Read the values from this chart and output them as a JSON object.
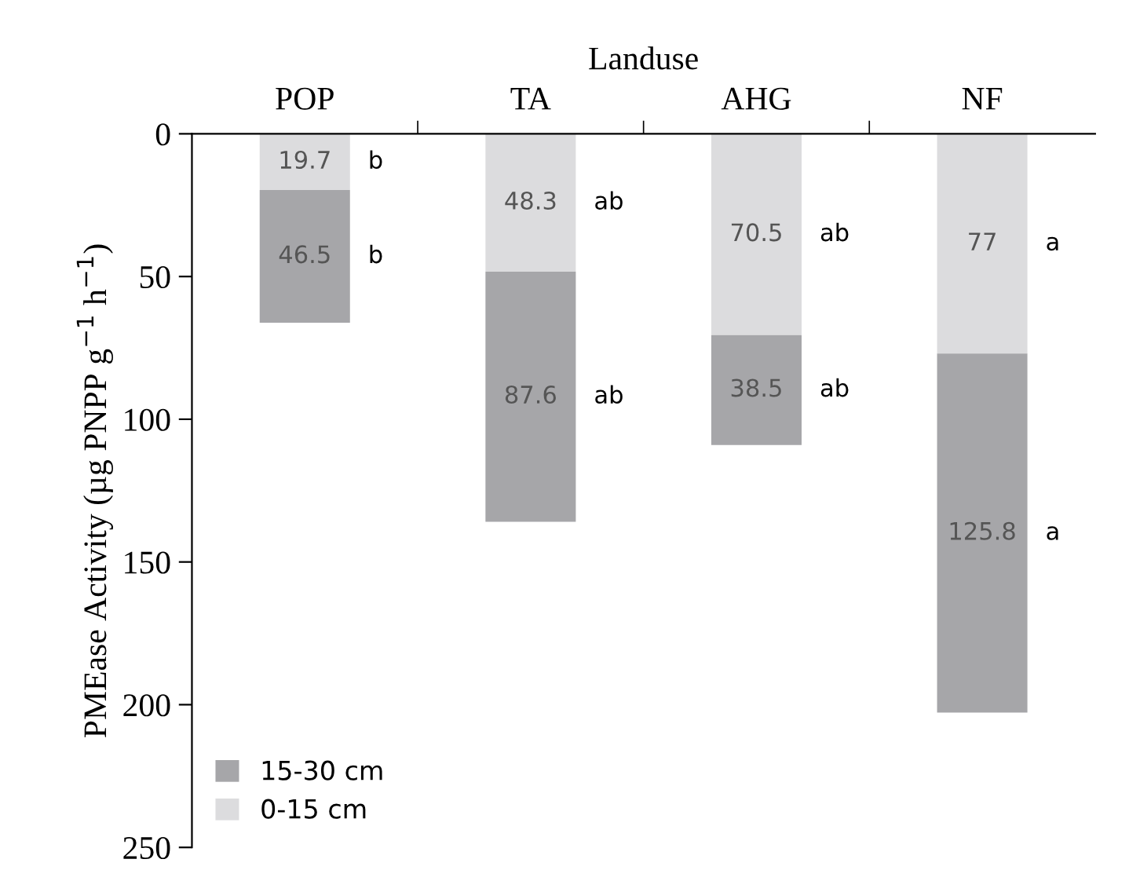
{
  "chart_data": {
    "type": "bar",
    "stacked": true,
    "xlabel": "Landuse",
    "ylabel": "PMEase Activity (µg PNPP g$^{−1}$ h$^{−1}$)",
    "categories": [
      "POP",
      "TA",
      "AHG",
      "NF"
    ],
    "series": [
      {
        "name": "0-15 cm",
        "color": "#dcdcde",
        "values": [
          19.7,
          48.3,
          70.5,
          77
        ]
      },
      {
        "name": "15-30 cm",
        "color": "#a6a6a9",
        "values": [
          46.5,
          87.6,
          38.5,
          125.8
        ]
      }
    ],
    "ylim": [
      250,
      0
    ],
    "yticks": [
      0,
      50,
      100,
      150,
      200,
      250
    ],
    "data_labels": true,
    "grid": false,
    "legend": "bottom left",
    "annotations": [
      "b",
      "b",
      "ab",
      "ab",
      "ab",
      "ab",
      "a",
      "a"
    ]
  }
}
